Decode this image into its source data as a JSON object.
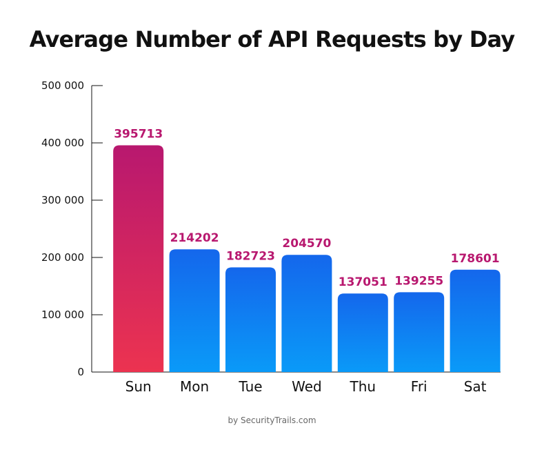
{
  "chart_data": {
    "type": "bar",
    "title": "Average Number of API Requests by Day",
    "xlabel": "",
    "ylabel": "",
    "categories": [
      "Sun",
      "Mon",
      "Tue",
      "Wed",
      "Thu",
      "Fri",
      "Sat"
    ],
    "values": [
      395713,
      214202,
      182723,
      204570,
      137051,
      139255,
      178601
    ],
    "data_labels": [
      "395713",
      "214202",
      "182723",
      "204570",
      "137051",
      "139255",
      "178601"
    ],
    "ylim": [
      0,
      500000
    ],
    "yticks": [
      0,
      100000,
      200000,
      300000,
      400000,
      500000
    ],
    "ytick_labels": [
      "0",
      "100 000",
      "200 000",
      "300 000",
      "400 000",
      "500 000"
    ],
    "grid": false,
    "highlight_category": "Sun",
    "colors": {
      "highlight_top": "#b8186f",
      "highlight_bottom": "#ec3350",
      "bar_top": "#1467ec",
      "bar_bottom": "#0a9af8",
      "data_label": "#b8186f",
      "axis": "#111111"
    }
  },
  "footer": {
    "credit": "by SecurityTrails.com"
  }
}
